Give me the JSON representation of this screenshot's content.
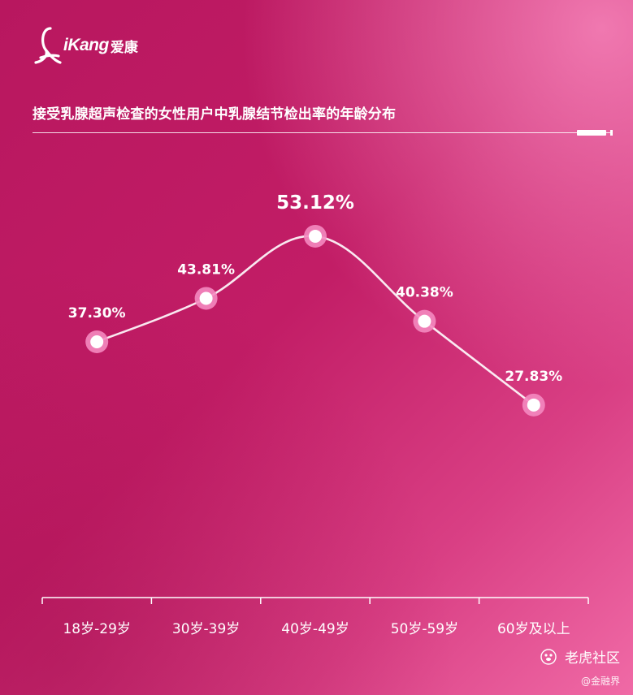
{
  "brand": {
    "logo_text": "iKang",
    "logo_cn": "爱康"
  },
  "watermark": {
    "text": "老虎社区",
    "sub": "@金融界"
  },
  "colors": {
    "line": "#ffffff",
    "marker_ring": "#f48ac0",
    "marker_center": "#ffffff"
  },
  "chart_data": {
    "type": "line",
    "title": "接受乳腺超声检查的女性用户中乳腺结节检出率的年龄分布",
    "xlabel": "",
    "ylabel": "",
    "categories": [
      "18岁-29岁",
      "30岁-39岁",
      "40岁-49岁",
      "50岁-59岁",
      "60岁及以上"
    ],
    "values": [
      37.3,
      43.81,
      53.12,
      40.38,
      27.83
    ],
    "data_labels": [
      "37.30%",
      "43.81%",
      "53.12%",
      "40.38%",
      "27.83%"
    ],
    "unit": "%",
    "ylim": [
      0,
      60
    ],
    "grid": false,
    "legend": "none",
    "highlight_index": 2
  }
}
